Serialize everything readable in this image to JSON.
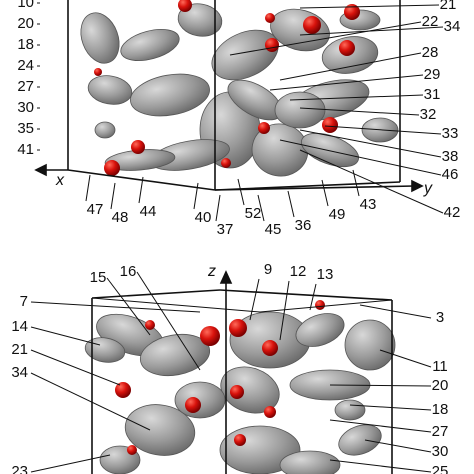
{
  "top_panel": {
    "axis_labels": {
      "x": "x",
      "y": "y"
    },
    "left_labels": [
      "10",
      "20",
      "18",
      "24",
      "27",
      "30",
      "35",
      "41"
    ],
    "right_labels": [
      "21",
      "22",
      "34",
      "28",
      "29",
      "31",
      "32",
      "33",
      "38",
      "46",
      "42"
    ],
    "bottom_labels": [
      "47",
      "48",
      "44",
      "40",
      "37",
      "52",
      "45",
      "36",
      "49",
      "43"
    ]
  },
  "bottom_panel": {
    "axis_labels": {
      "z": "z"
    },
    "top_labels": [
      "15",
      "16",
      "9",
      "12",
      "13"
    ],
    "left_labels": [
      "7",
      "14",
      "21",
      "34",
      "23"
    ],
    "right_labels": [
      "3",
      "11",
      "20",
      "18",
      "27",
      "30",
      "25"
    ]
  }
}
